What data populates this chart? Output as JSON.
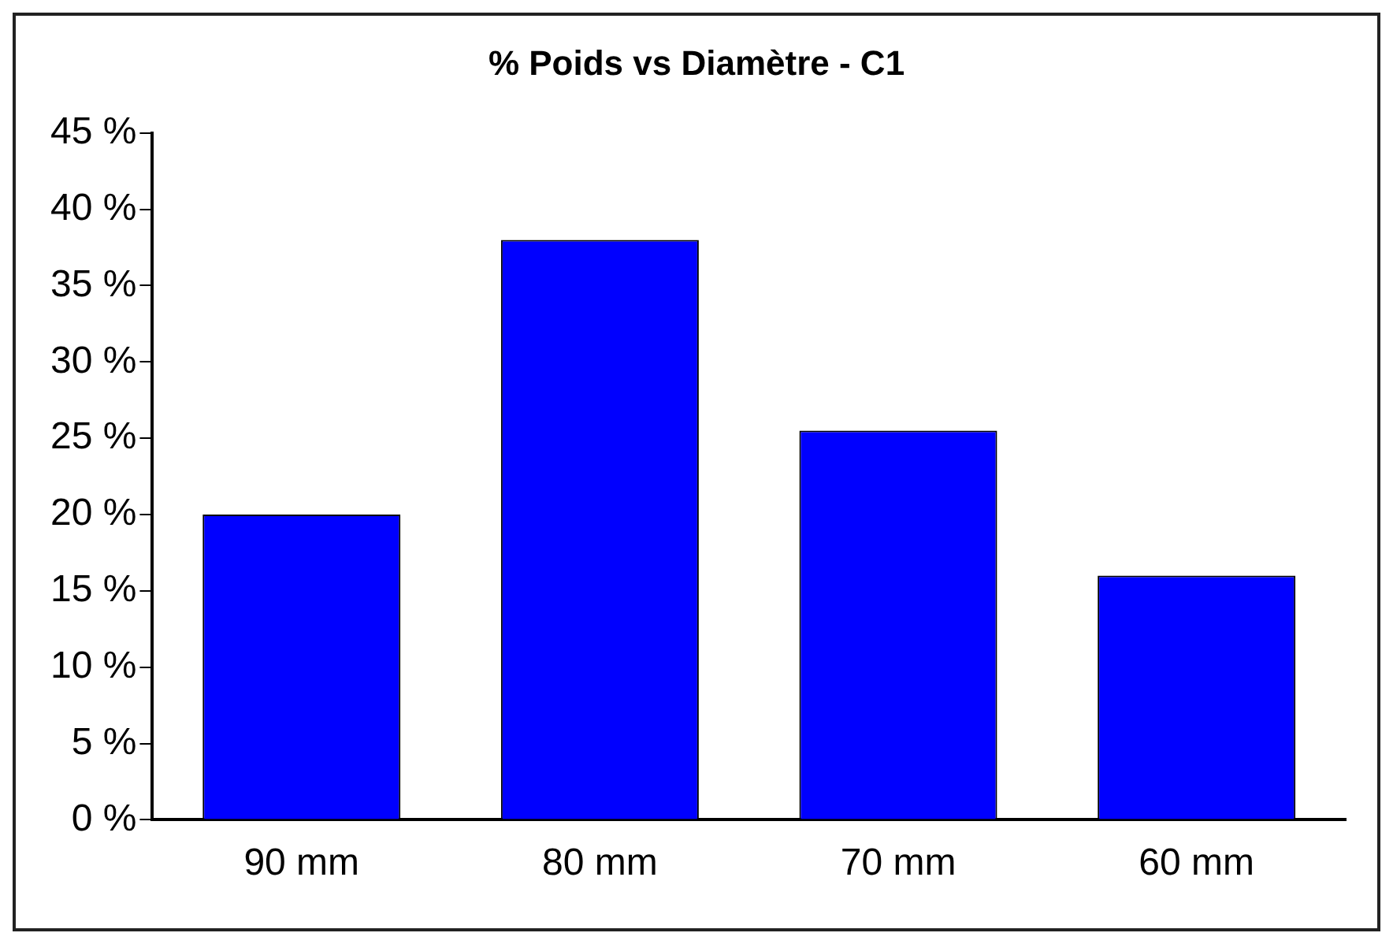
{
  "chart_data": {
    "type": "bar",
    "title": "% Poids vs Diamètre - C1",
    "categories": [
      "90 mm",
      "80 mm",
      "70 mm",
      "60 mm"
    ],
    "values": [
      20,
      38,
      25.5,
      16
    ],
    "color": "#0000ff",
    "ylim": [
      0,
      45
    ],
    "yticks": [
      {
        "value": 0,
        "label": "0 %"
      },
      {
        "value": 5,
        "label": "5 %"
      },
      {
        "value": 10,
        "label": "10 %"
      },
      {
        "value": 15,
        "label": "15 %"
      },
      {
        "value": 20,
        "label": "20 %"
      },
      {
        "value": 25,
        "label": "25 %"
      },
      {
        "value": 30,
        "label": "30 %"
      },
      {
        "value": 35,
        "label": "35 %"
      },
      {
        "value": 40,
        "label": "40 %"
      },
      {
        "value": 45,
        "label": "45 %"
      }
    ],
    "grid": false,
    "legend": false
  }
}
